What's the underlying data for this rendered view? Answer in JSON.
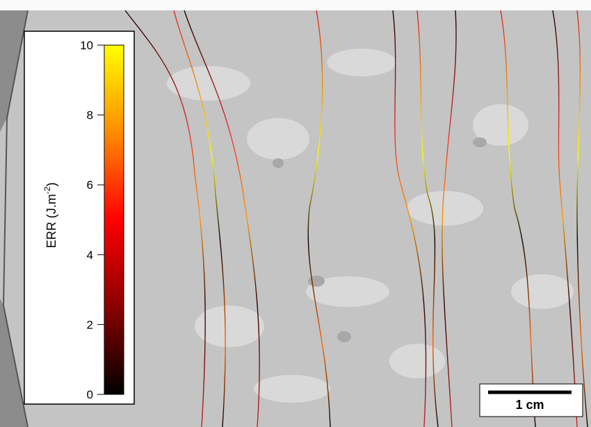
{
  "colorbar": {
    "label": "ERR (J.m",
    "label_exponent": "-2",
    "label_suffix": ")",
    "lim": [
      0,
      10
    ],
    "ticks": [
      0,
      2,
      4,
      6,
      8,
      10
    ],
    "colors": [
      "#000000",
      "#8b0000",
      "#ff0000",
      "#ff8c00",
      "#ffff00"
    ]
  },
  "scale_bar": {
    "label": "1 cm"
  }
}
